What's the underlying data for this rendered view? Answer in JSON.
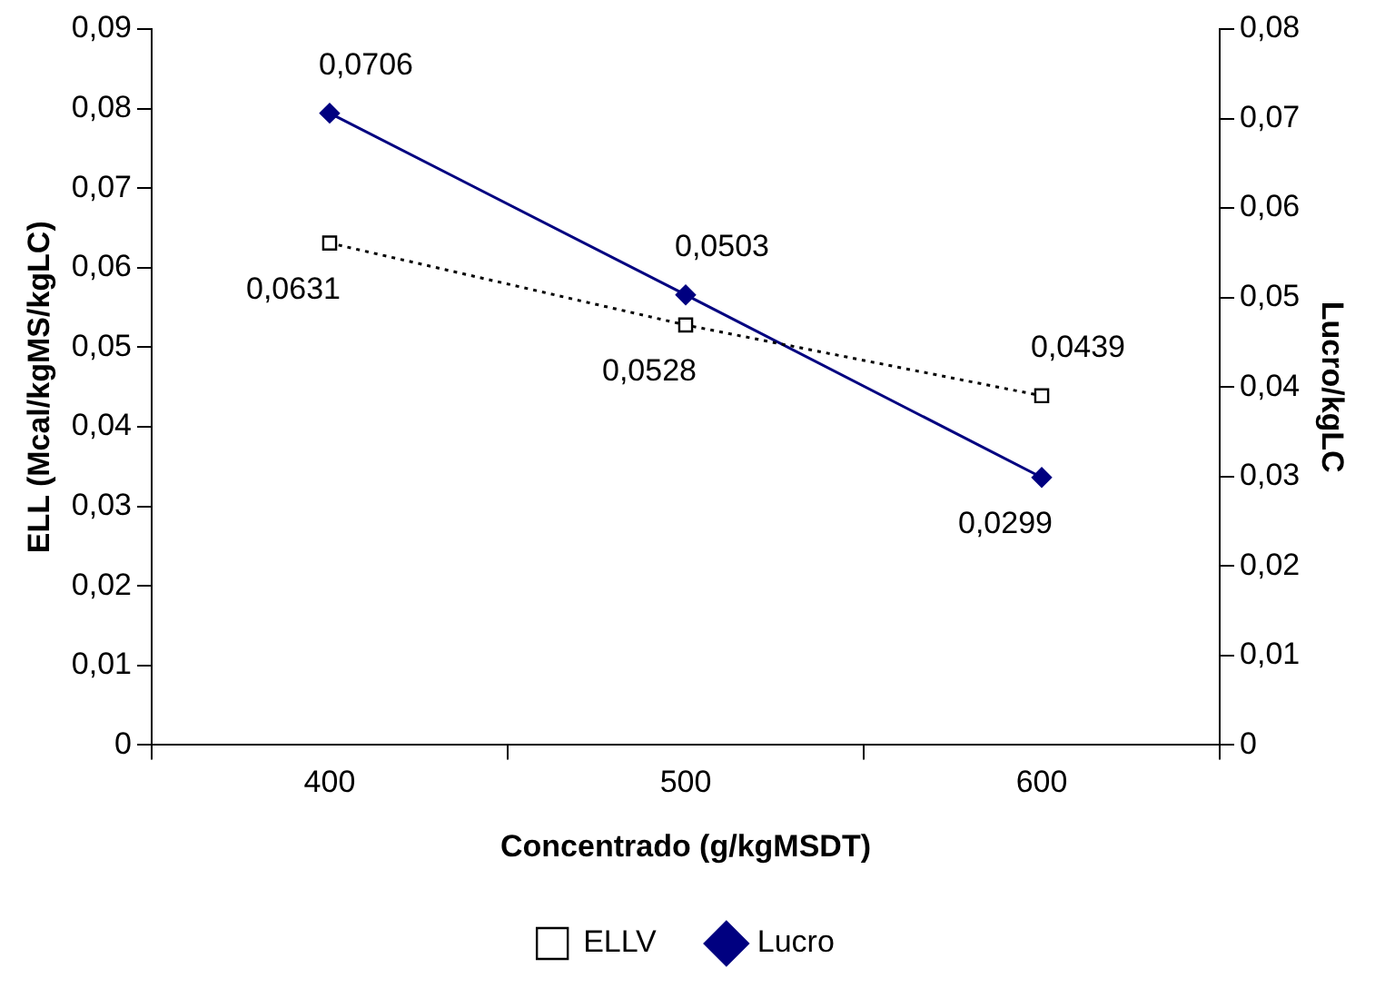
{
  "chart_data": {
    "type": "line",
    "xlabel": "Concentrado (g/kgMSDT)",
    "ylabel": "ELL (Mcal/kgMS/kgLC)",
    "y2label": "Lucro/kgLC",
    "categories": [
      "400",
      "500",
      "600"
    ],
    "series": [
      {
        "name": "ELLV",
        "color": "#000000",
        "values": [
          0.0631,
          0.0528,
          0.0439
        ],
        "value_labels": [
          "0,0631",
          "0,0528",
          "0,0439"
        ],
        "marker": "square",
        "line_style": "dotted"
      },
      {
        "name": "Lucro",
        "color": "#000080",
        "values": [
          0.0706,
          0.0503,
          0.0299
        ],
        "value_labels": [
          "0,0706",
          "0,0503",
          "0,0299"
        ],
        "marker": "diamond",
        "line_style": "solid",
        "axis": "y2"
      }
    ],
    "ylim": [
      0,
      0.09
    ],
    "yticks": [
      0,
      {
        "value": 0.01,
        "label": "0,01"
      },
      {
        "value": 0.02,
        "label": "0,02"
      },
      {
        "value": 0.03,
        "label": "0,03"
      },
      {
        "value": 0.04,
        "label": "0,04"
      },
      {
        "value": 0.05,
        "label": "0,05"
      },
      {
        "value": 0.06,
        "label": "0,06"
      },
      {
        "value": 0.07,
        "label": "0,07"
      },
      {
        "value": 0.08,
        "label": "0,08"
      },
      {
        "value": 0.09,
        "label": "0,09"
      }
    ],
    "y2lim": [
      0,
      0.08
    ],
    "y2ticks": [
      0,
      {
        "value": 0.01,
        "label": "0,01"
      },
      {
        "value": 0.02,
        "label": "0,02"
      },
      {
        "value": 0.03,
        "label": "0,03"
      },
      {
        "value": 0.04,
        "label": "0,04"
      },
      {
        "value": 0.05,
        "label": "0,05"
      },
      {
        "value": 0.06,
        "label": "0,06"
      },
      {
        "value": 0.07,
        "label": "0,07"
      },
      {
        "value": 0.08,
        "label": "0,08"
      }
    ],
    "grid": false,
    "legend": "bottom"
  }
}
